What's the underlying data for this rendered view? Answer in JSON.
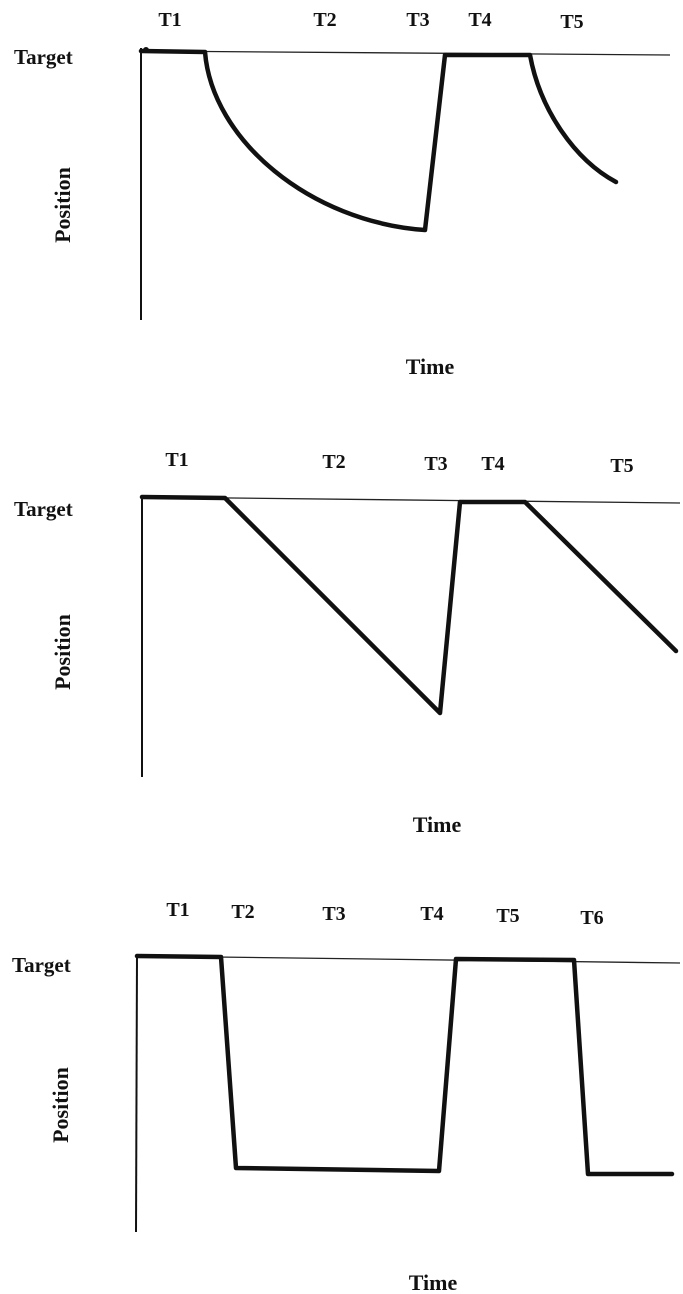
{
  "panels": [
    {
      "id": "curved",
      "phase_labels": [
        "T1",
        "T2",
        "T3",
        "T4",
        "T5"
      ],
      "target_label": "Target",
      "y_axis_label": "Position",
      "x_axis_label": "Time",
      "profile": "exponential-decay"
    },
    {
      "id": "linear",
      "phase_labels": [
        "T1",
        "T2",
        "T3",
        "T4",
        "T5"
      ],
      "target_label": "Target",
      "y_axis_label": "Position",
      "x_axis_label": "Time",
      "profile": "linear-ramp"
    },
    {
      "id": "step",
      "phase_labels": [
        "T1",
        "T2",
        "T3",
        "T4",
        "T5",
        "T6"
      ],
      "target_label": "Target",
      "y_axis_label": "Position",
      "x_axis_label": "Time",
      "profile": "step"
    }
  ],
  "colors": {
    "ink": "#111111",
    "background": "#ffffff"
  }
}
